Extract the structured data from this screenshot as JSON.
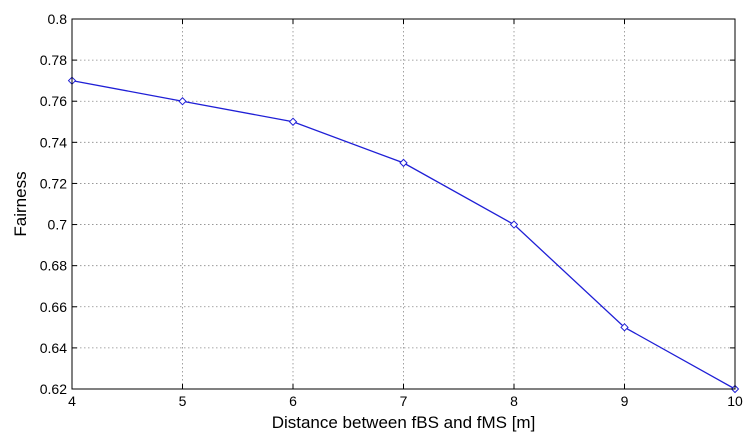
{
  "chart_data": {
    "type": "line",
    "title": "",
    "xlabel": "Distance between fBS and fMS [m]",
    "ylabel": "Fairness",
    "xlim": [
      4,
      10
    ],
    "ylim": [
      0.62,
      0.8
    ],
    "xticks": [
      4,
      5,
      6,
      7,
      8,
      9,
      10
    ],
    "yticks": [
      0.62,
      0.64,
      0.66,
      0.68,
      0.7,
      0.72,
      0.74,
      0.76,
      0.78,
      0.8
    ],
    "xtick_labels": [
      "4",
      "5",
      "6",
      "7",
      "8",
      "9",
      "10"
    ],
    "ytick_labels": [
      "0.62",
      "0.64",
      "0.66",
      "0.68",
      "0.7",
      "0.72",
      "0.74",
      "0.76",
      "0.78",
      "0.8"
    ],
    "grid": true,
    "legend": null,
    "series": [
      {
        "x": [
          4,
          5,
          6,
          7,
          8,
          9,
          10
        ],
        "y": [
          0.77,
          0.76,
          0.75,
          0.73,
          0.7,
          0.65,
          0.62
        ],
        "color": "#1f1fd6",
        "marker": "diamond"
      }
    ]
  }
}
